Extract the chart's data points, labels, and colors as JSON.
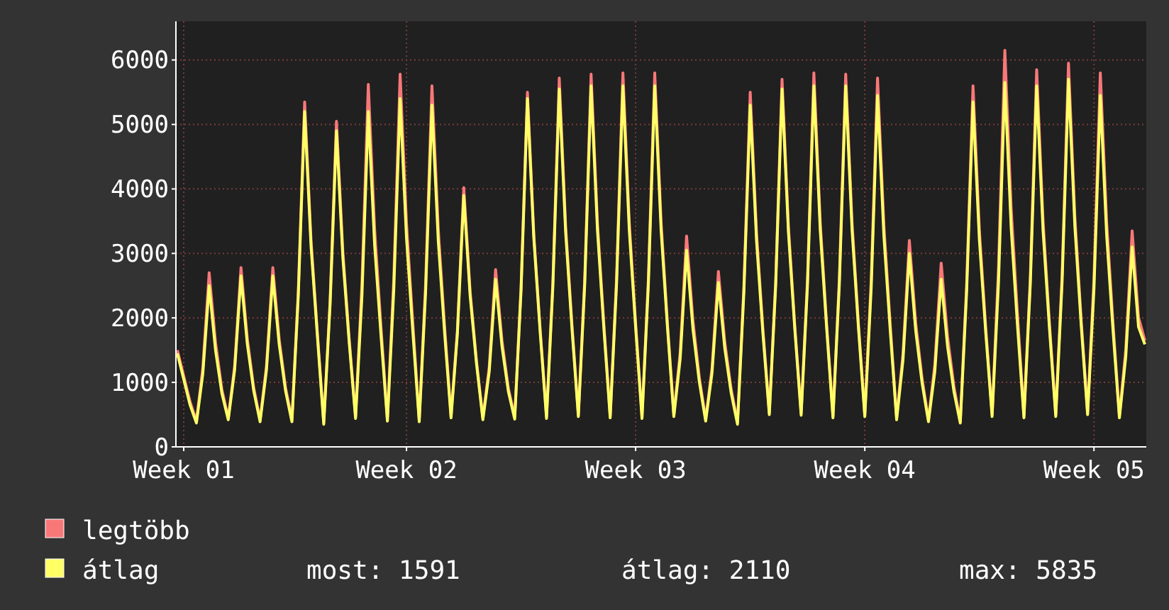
{
  "chart_data": {
    "type": "line",
    "ylim": [
      0,
      6600
    ],
    "yticks": [
      0,
      1000,
      2000,
      3000,
      4000,
      5000,
      6000
    ],
    "grid": true,
    "legend": "bottom left",
    "line_style": "solid",
    "marker": "none",
    "annotations": [
      "most: 1591",
      "átlag: 2110",
      "max: 5835"
    ],
    "categories": [
      null,
      "Week 01",
      null,
      null,
      null,
      null,
      null,
      null,
      null,
      null,
      null,
      null,
      null,
      null,
      null,
      null,
      null,
      null,
      null,
      null,
      null,
      null,
      null,
      null,
      null,
      null,
      null,
      null,
      null,
      null,
      null,
      null,
      null,
      null,
      null,
      null,
      "Week 02",
      null,
      null,
      null,
      null,
      null,
      null,
      null,
      null,
      null,
      null,
      null,
      null,
      null,
      null,
      null,
      null,
      null,
      null,
      null,
      null,
      null,
      null,
      null,
      null,
      null,
      null,
      null,
      null,
      null,
      null,
      null,
      null,
      null,
      null,
      null,
      "Week 03",
      null,
      null,
      null,
      null,
      null,
      null,
      null,
      null,
      null,
      null,
      null,
      null,
      null,
      null,
      null,
      null,
      null,
      null,
      null,
      null,
      null,
      null,
      null,
      null,
      null,
      null,
      null,
      null,
      null,
      null,
      null,
      null,
      null,
      null,
      null,
      "Week 04",
      null,
      null,
      null,
      null,
      null,
      null,
      null,
      null,
      null,
      null,
      null,
      null,
      null,
      null,
      null,
      null,
      null,
      null,
      null,
      null,
      null,
      null,
      null,
      null,
      null,
      null,
      null,
      null,
      null,
      null,
      null,
      null,
      null,
      null,
      null,
      "Week 05",
      null,
      null,
      null,
      null,
      null,
      null,
      null,
      null
    ],
    "series": [
      {
        "name": "legtöbb",
        "color": "#f87878",
        "values": [
          1500,
          1100,
          700,
          400,
          1220,
          2700,
          1620,
          890,
          450,
          1250,
          2780,
          1670,
          920,
          420,
          1250,
          2780,
          1670,
          920,
          420,
          2410,
          5350,
          3210,
          1770,
          380,
          2270,
          5050,
          3030,
          1670,
          470,
          2530,
          5620,
          3370,
          1850,
          430,
          2600,
          5780,
          3470,
          1910,
          420,
          2520,
          5600,
          3360,
          1850,
          480,
          1810,
          4020,
          2410,
          1330,
          450,
          1240,
          2750,
          1650,
          910,
          460,
          2480,
          5500,
          3300,
          1820,
          470,
          2570,
          5720,
          3430,
          1890,
          500,
          2600,
          5780,
          3470,
          1910,
          480,
          2610,
          5800,
          3480,
          1910,
          470,
          2610,
          5800,
          3480,
          1910,
          500,
          1470,
          3270,
          1960,
          1080,
          430,
          1220,
          2720,
          1630,
          900,
          380,
          2480,
          5500,
          3300,
          1820,
          530,
          2570,
          5700,
          3420,
          1880,
          520,
          2610,
          5800,
          3480,
          1910,
          480,
          2600,
          5780,
          3470,
          1910,
          500,
          2570,
          5720,
          3430,
          1890,
          450,
          1440,
          3200,
          1920,
          1060,
          420,
          1280,
          2850,
          1710,
          940,
          400,
          2520,
          5600,
          3360,
          1850,
          500,
          2770,
          6150,
          3690,
          2030,
          480,
          2630,
          5850,
          3510,
          1930,
          500,
          2680,
          5950,
          3570,
          1960,
          530,
          2610,
          5800,
          3480,
          1910,
          480,
          1510,
          3350,
          2010,
          1650
        ]
      },
      {
        "name": "átlag",
        "color": "#ffff66",
        "values": [
          1450,
          1050,
          650,
          370,
          1130,
          2500,
          1500,
          830,
          420,
          1190,
          2650,
          1590,
          870,
          390,
          1190,
          2650,
          1590,
          870,
          390,
          2340,
          5200,
          3120,
          1720,
          350,
          2210,
          4900,
          2940,
          1620,
          440,
          2340,
          5200,
          3120,
          1720,
          400,
          2430,
          5400,
          3240,
          1780,
          390,
          2390,
          5300,
          3180,
          1750,
          450,
          1760,
          3900,
          2340,
          1290,
          420,
          1170,
          2600,
          1560,
          860,
          430,
          2430,
          5400,
          3240,
          1780,
          440,
          2500,
          5550,
          3330,
          1830,
          470,
          2520,
          5600,
          3360,
          1850,
          450,
          2520,
          5600,
          3360,
          1850,
          440,
          2520,
          5600,
          3360,
          1850,
          470,
          1370,
          3050,
          1830,
          1010,
          400,
          1150,
          2550,
          1530,
          840,
          350,
          2390,
          5300,
          3180,
          1750,
          500,
          2500,
          5550,
          3330,
          1830,
          490,
          2520,
          5600,
          3360,
          1850,
          450,
          2520,
          5600,
          3360,
          1850,
          470,
          2450,
          5450,
          3270,
          1800,
          420,
          1350,
          3000,
          1800,
          990,
          390,
          1170,
          2600,
          1560,
          860,
          370,
          2410,
          5350,
          3210,
          1770,
          470,
          2540,
          5650,
          3390,
          1860,
          450,
          2520,
          5600,
          3360,
          1850,
          470,
          2570,
          5700,
          3420,
          1880,
          500,
          2450,
          5450,
          3270,
          1800,
          450,
          1400,
          3100,
          1860,
          1590
        ]
      }
    ]
  }
}
